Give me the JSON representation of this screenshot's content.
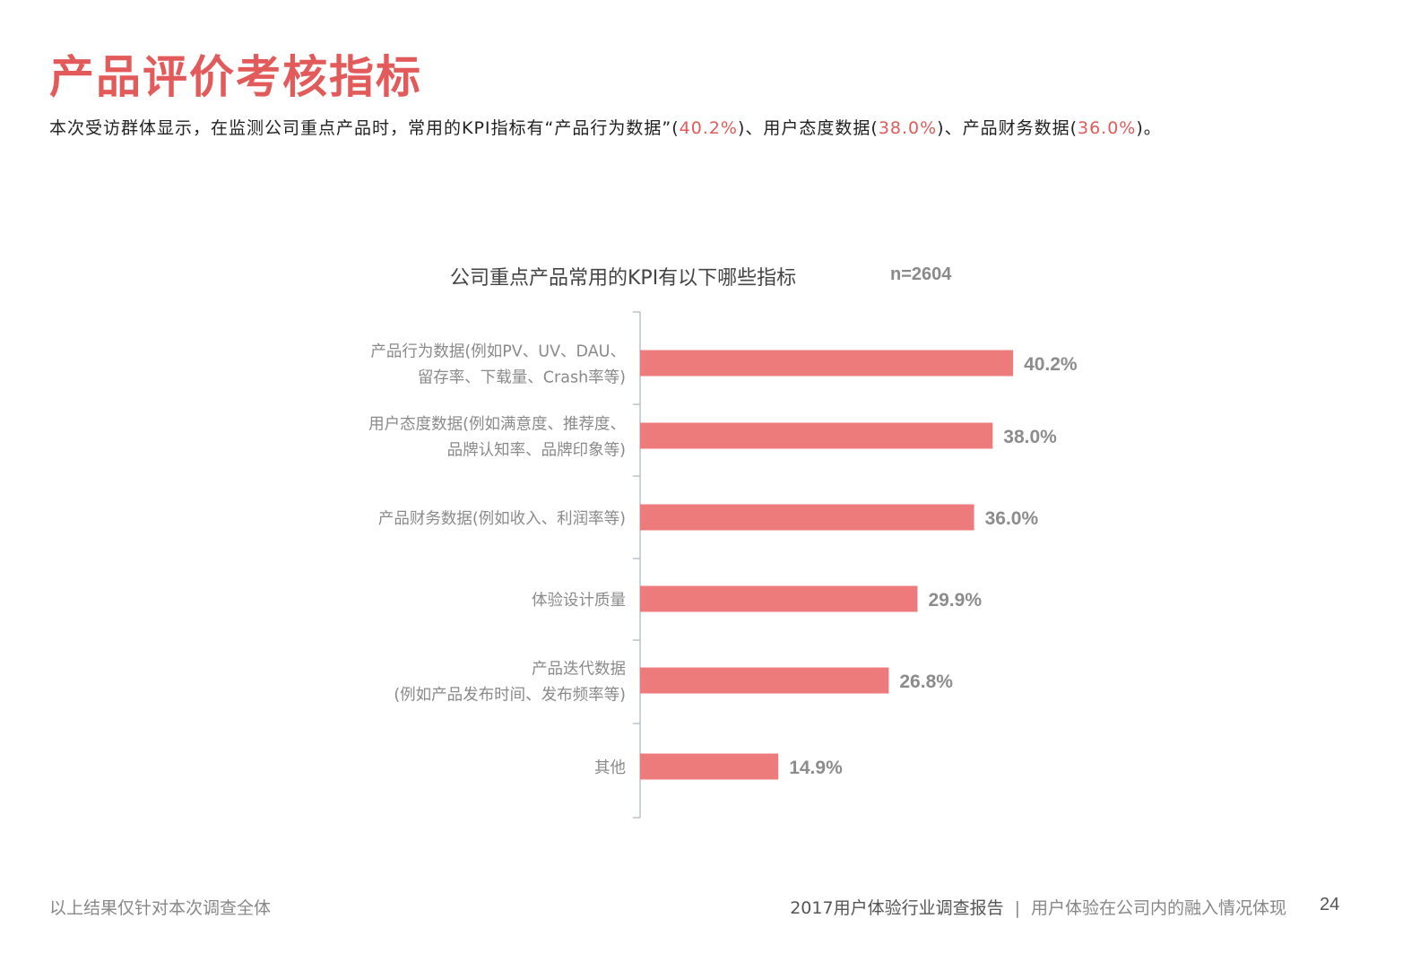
{
  "header": {
    "title": "产品评价考核指标"
  },
  "summary": {
    "part1": "本次受访群体显示，在监测公司重点产品时，常用的KPI指标有“产品行为数据”(",
    "v1": "40.2%",
    "part2": ")、用户态度数据(",
    "v2": "38.0%",
    "part3": ")、产品财务数据(",
    "v3": "36.0%",
    "part4": ")。"
  },
  "chart_data": {
    "type": "bar",
    "orientation": "horizontal",
    "title": "公司重点产品常用的KPI有以下哪些指标",
    "sample_size": "n=2604",
    "categories": [
      [
        "产品行为数据(例如PV、UV、DAU、",
        "留存率、下载量、Crash率等)"
      ],
      [
        "用户态度数据(例如满意度、推荐度、",
        "品牌认知率、品牌印象等)"
      ],
      [
        "产品财务数据(例如收入、利润率等)"
      ],
      [
        "体验设计质量"
      ],
      [
        "产品迭代数据",
        "(例如产品发布时间、发布频率等)"
      ],
      [
        "其他"
      ]
    ],
    "values": [
      40.2,
      38.0,
      36.0,
      29.9,
      26.8,
      14.9
    ],
    "value_labels": [
      "40.2%",
      "38.0%",
      "36.0%",
      "29.9%",
      "26.8%",
      "14.9%"
    ],
    "unit": "%",
    "bar_color": "#ee7b7b",
    "xlim": [
      0,
      100
    ],
    "grid": false,
    "legend": "none"
  },
  "footer": {
    "note": "以上结果仅针对本次调查全体",
    "report": "2017用户体验行业调查报告",
    "separator": "|",
    "section": "用户体验在公司内的融入情况体现",
    "page": "24"
  }
}
